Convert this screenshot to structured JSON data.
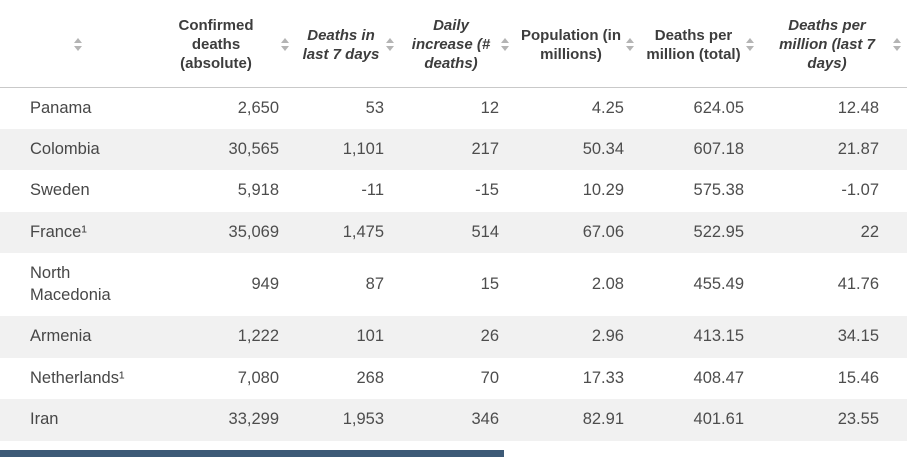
{
  "table": {
    "columns": [
      {
        "label": ""
      },
      {
        "label": "Confirmed deaths (absolute)"
      },
      {
        "label": "Deaths in last 7 days"
      },
      {
        "label": "Daily increase (# deaths)"
      },
      {
        "label": "Population (in millions)"
      },
      {
        "label": "Deaths per million (total)"
      },
      {
        "label": "Deaths per million (last 7 days)"
      }
    ],
    "rows": [
      {
        "country": "Panama",
        "values": [
          "2,650",
          "53",
          "12",
          "4.25",
          "624.05",
          "12.48"
        ]
      },
      {
        "country": "Colombia",
        "values": [
          "30,565",
          "1,101",
          "217",
          "50.34",
          "607.18",
          "21.87"
        ]
      },
      {
        "country": "Sweden",
        "values": [
          "5,918",
          "-11",
          "-15",
          "10.29",
          "575.38",
          "-1.07"
        ]
      },
      {
        "country": "France¹",
        "values": [
          "35,069",
          "1,475",
          "514",
          "67.06",
          "522.95",
          "22"
        ]
      },
      {
        "country": "North Macedonia",
        "values": [
          "949",
          "87",
          "15",
          "2.08",
          "455.49",
          "41.76"
        ]
      },
      {
        "country": "Armenia",
        "values": [
          "1,222",
          "101",
          "26",
          "2.96",
          "413.15",
          "34.15"
        ]
      },
      {
        "country": "Netherlands¹",
        "values": [
          "7,080",
          "268",
          "70",
          "17.33",
          "408.47",
          "15.46"
        ]
      },
      {
        "country": "Iran",
        "values": [
          "33,299",
          "1,953",
          "346",
          "82.91",
          "401.61",
          "23.55"
        ]
      }
    ]
  },
  "colors": {
    "row_stripe": "#f1f1f1",
    "header_text": "#3d3d3d",
    "body_text": "#4d4d4d",
    "scrollbar_thumb": "#3d5a77"
  },
  "icons": {
    "sort": "sort-up-down-arrows"
  }
}
